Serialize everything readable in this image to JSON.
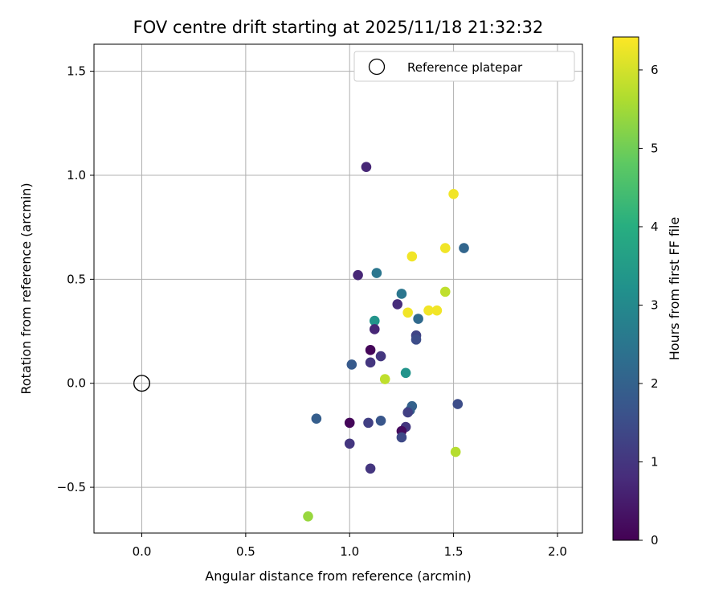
{
  "chart_data": {
    "type": "scatter",
    "title": "FOV centre drift starting at 2025/11/18 21:32:32",
    "xlabel": "Angular distance from reference (arcmin)",
    "ylabel": "Rotation from reference (arcmin)",
    "xlim": [
      -0.23,
      2.12
    ],
    "ylim": [
      -0.72,
      1.63
    ],
    "xticks": [
      0.0,
      0.5,
      1.0,
      1.5,
      2.0
    ],
    "xtick_labels": [
      "0.0",
      "0.5",
      "1.0",
      "1.5",
      "2.0"
    ],
    "yticks": [
      -0.5,
      0.0,
      0.5,
      1.0,
      1.5
    ],
    "ytick_labels": [
      "−0.5",
      "0.0",
      "0.5",
      "1.0",
      "1.5"
    ],
    "grid": true,
    "legend": {
      "position": "top-right",
      "label": "Reference platepar"
    },
    "reference": {
      "x": 0.0,
      "y": 0.0
    },
    "colorbar": {
      "label": "Hours from first FF file",
      "range": [
        0,
        6.42
      ],
      "ticks": [
        0,
        1,
        2,
        3,
        4,
        5,
        6
      ],
      "tick_labels": [
        "0",
        "1",
        "2",
        "3",
        "4",
        "5",
        "6"
      ],
      "colormap": "viridis"
    },
    "points": [
      {
        "x": 1.08,
        "y": 1.04,
        "h": 0.7
      },
      {
        "x": 1.5,
        "y": 0.91,
        "h": 6.3
      },
      {
        "x": 1.55,
        "y": 0.65,
        "h": 2.1
      },
      {
        "x": 1.46,
        "y": 0.65,
        "h": 6.3
      },
      {
        "x": 1.3,
        "y": 0.61,
        "h": 6.3
      },
      {
        "x": 1.04,
        "y": 0.52,
        "h": 0.7
      },
      {
        "x": 1.13,
        "y": 0.53,
        "h": 2.5
      },
      {
        "x": 1.46,
        "y": 0.44,
        "h": 5.8
      },
      {
        "x": 1.25,
        "y": 0.43,
        "h": 2.5
      },
      {
        "x": 1.23,
        "y": 0.38,
        "h": 0.8
      },
      {
        "x": 1.42,
        "y": 0.35,
        "h": 6.3
      },
      {
        "x": 1.38,
        "y": 0.35,
        "h": 6.3
      },
      {
        "x": 1.28,
        "y": 0.34,
        "h": 6.3
      },
      {
        "x": 1.33,
        "y": 0.31,
        "h": 2.2
      },
      {
        "x": 1.12,
        "y": 0.3,
        "h": 3.3
      },
      {
        "x": 1.12,
        "y": 0.26,
        "h": 0.7
      },
      {
        "x": 1.32,
        "y": 0.23,
        "h": 1.3
      },
      {
        "x": 1.32,
        "y": 0.21,
        "h": 1.5
      },
      {
        "x": 1.1,
        "y": 0.16,
        "h": 0.1
      },
      {
        "x": 1.15,
        "y": 0.13,
        "h": 1.0
      },
      {
        "x": 1.1,
        "y": 0.1,
        "h": 1.0
      },
      {
        "x": 1.01,
        "y": 0.09,
        "h": 1.8
      },
      {
        "x": 1.27,
        "y": 0.05,
        "h": 3.3
      },
      {
        "x": 1.17,
        "y": 0.02,
        "h": 5.8
      },
      {
        "x": 1.52,
        "y": -0.1,
        "h": 1.5
      },
      {
        "x": 1.3,
        "y": -0.11,
        "h": 2.0
      },
      {
        "x": 1.29,
        "y": -0.13,
        "h": 1.9
      },
      {
        "x": 1.28,
        "y": -0.14,
        "h": 1.2
      },
      {
        "x": 0.84,
        "y": -0.17,
        "h": 1.9
      },
      {
        "x": 1.15,
        "y": -0.18,
        "h": 1.7
      },
      {
        "x": 1.09,
        "y": -0.19,
        "h": 1.2
      },
      {
        "x": 1.0,
        "y": -0.19,
        "h": 0.1
      },
      {
        "x": 1.27,
        "y": -0.21,
        "h": 1.0
      },
      {
        "x": 1.25,
        "y": -0.23,
        "h": 0.2
      },
      {
        "x": 1.25,
        "y": -0.26,
        "h": 1.4
      },
      {
        "x": 1.0,
        "y": -0.29,
        "h": 1.0
      },
      {
        "x": 1.51,
        "y": -0.33,
        "h": 5.7
      },
      {
        "x": 1.1,
        "y": -0.41,
        "h": 1.0
      },
      {
        "x": 0.8,
        "y": -0.64,
        "h": 5.4
      }
    ]
  }
}
